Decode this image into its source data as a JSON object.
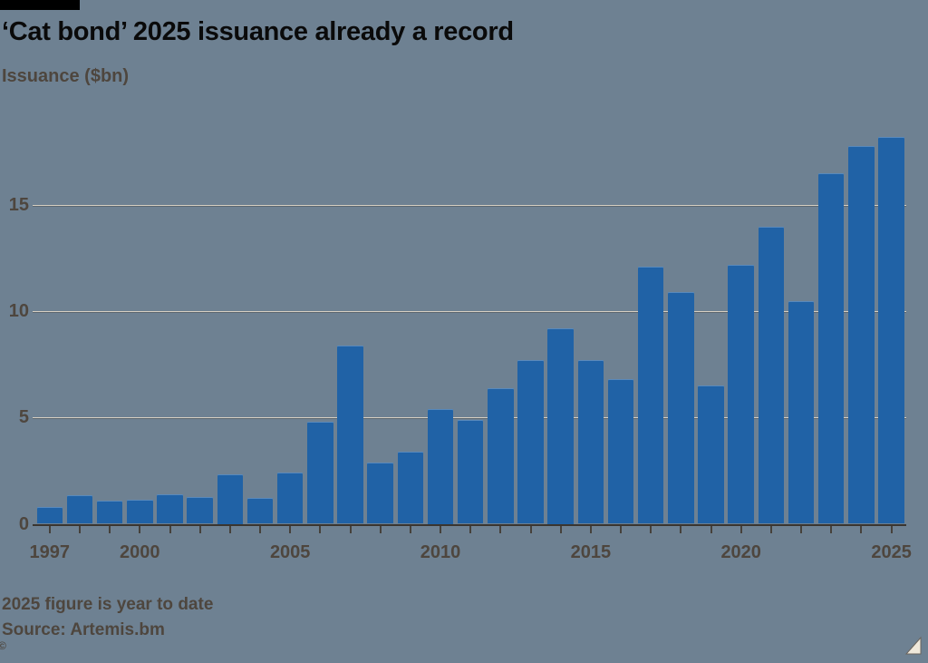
{
  "brand": {
    "top_strip_color": "#000000"
  },
  "header": {
    "title": "‘Cat bond’ 2025 issuance already a record",
    "unit_label": "Issuance ($bn)"
  },
  "chart_data": {
    "type": "bar",
    "title": "‘Cat bond’ 2025 issuance already a record",
    "xlabel": "",
    "ylabel": "Issuance ($bn)",
    "x": [
      1997,
      1998,
      1999,
      2000,
      2001,
      2002,
      2003,
      2004,
      2005,
      2006,
      2007,
      2008,
      2009,
      2010,
      2011,
      2012,
      2013,
      2014,
      2015,
      2016,
      2017,
      2018,
      2019,
      2020,
      2021,
      2022,
      2023,
      2024,
      2025
    ],
    "values": [
      0.8,
      1.35,
      1.1,
      1.15,
      1.4,
      1.25,
      2.35,
      1.2,
      2.4,
      4.8,
      8.4,
      2.9,
      3.4,
      5.4,
      4.9,
      6.4,
      7.7,
      9.2,
      7.7,
      6.8,
      12.1,
      10.9,
      6.5,
      12.2,
      14.0,
      10.5,
      16.5,
      17.8,
      18.2
    ],
    "ylim": [
      0,
      19
    ],
    "yticks": [
      0,
      5,
      10,
      15
    ],
    "xtick_labels": [
      "1997",
      "2000",
      "2005",
      "2010",
      "2015",
      "2020",
      "2025"
    ],
    "grid": "horizontal",
    "legend": "none",
    "bar_color": "#2062a6",
    "background_color": "#6e8192",
    "gridline_color": "#d6cfc2",
    "axis_text_color": "#4e463e"
  },
  "footer": {
    "note": "2025 figure is year to date",
    "source": "Source: Artemis.bm",
    "copyright_mark": "©"
  }
}
